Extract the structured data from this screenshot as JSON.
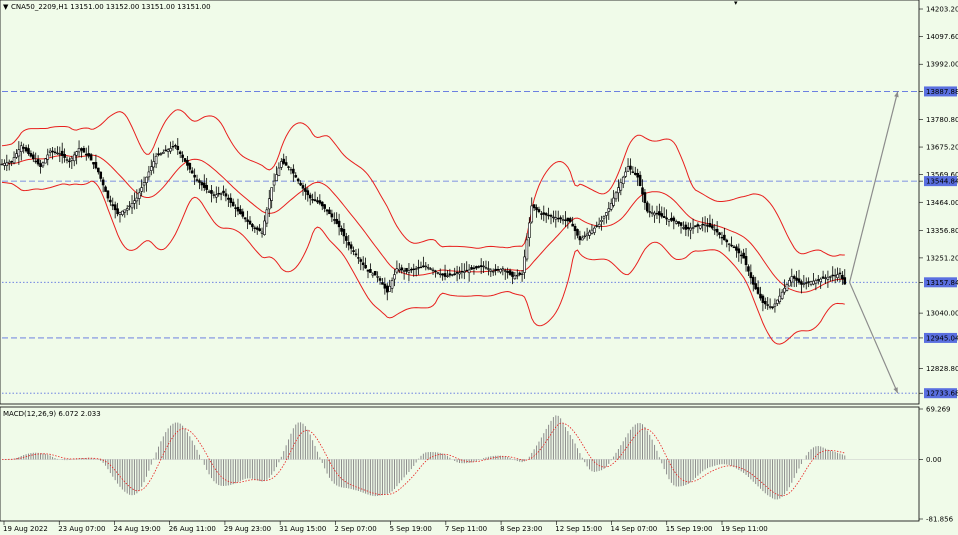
{
  "header": {
    "symbol_line": "CNA50_2209,H1  13151.00 13152.00 13151.00 13151.00"
  },
  "chart_data": {
    "type": "candlestick",
    "symbol": "CNA50_2209",
    "timeframe": "H1",
    "last_ohlc": [
      13151.0,
      13152.0,
      13151.0,
      13151.0
    ],
    "price_ylim": [
      12700,
      14230
    ],
    "price_ticks": [
      "14203.20",
      "14097.60",
      "13992.00",
      "13887.88",
      "13780.80",
      "13675.20",
      "13569.60",
      "13544.84",
      "13464.00",
      "13356.80",
      "13251.20",
      "13157.84",
      "13040.00",
      "12945.04",
      "12828.80",
      "12733.68"
    ],
    "price_tick_values": [
      14203.2,
      14097.6,
      13992.0,
      13887.88,
      13780.8,
      13675.2,
      13569.6,
      13544.84,
      13464.0,
      13356.8,
      13251.2,
      13157.84,
      13040.0,
      12945.04,
      12828.8,
      12733.68
    ],
    "highlighted_levels": [
      {
        "value": 13887.88,
        "label": "13887.88",
        "style": "dashed",
        "color": "#5a6fe0"
      },
      {
        "value": 13544.84,
        "label": "13544.84",
        "style": "dashed",
        "color": "#5a6fe0"
      },
      {
        "value": 13157.84,
        "label": "13157.84",
        "style": "dotted",
        "color": "#5a6fe0"
      },
      {
        "value": 12945.04,
        "label": "12945.04",
        "style": "dashed",
        "color": "#5a6fe0"
      },
      {
        "value": 12733.68,
        "label": "12733.68",
        "style": "dotted",
        "color": "#5a6fe0"
      }
    ],
    "x_labels": [
      "19 Aug 2022",
      "23 Aug 07:00",
      "24 Aug 19:00",
      "26 Aug 11:00",
      "29 Aug 23:00",
      "31 Aug 15:00",
      "2 Sep 07:00",
      "5 Sep 19:00",
      "7 Sep 11:00",
      "8 Sep 23:00",
      "12 Sep 15:00",
      "14 Sep 07:00",
      "15 Sep 19:00",
      "19 Sep 11:00"
    ],
    "close_path": [
      [
        0,
        13610
      ],
      [
        2,
        13620
      ],
      [
        4,
        13680
      ],
      [
        6,
        13640
      ],
      [
        8,
        13600
      ],
      [
        10,
        13660
      ],
      [
        12,
        13650
      ],
      [
        14,
        13620
      ],
      [
        16,
        13670
      ],
      [
        18,
        13640
      ],
      [
        20,
        13580
      ],
      [
        22,
        13480
      ],
      [
        24,
        13420
      ],
      [
        26,
        13440
      ],
      [
        28,
        13480
      ],
      [
        30,
        13560
      ],
      [
        32,
        13640
      ],
      [
        34,
        13660
      ],
      [
        36,
        13680
      ],
      [
        38,
        13620
      ],
      [
        40,
        13560
      ],
      [
        42,
        13520
      ],
      [
        44,
        13490
      ],
      [
        46,
        13500
      ],
      [
        48,
        13450
      ],
      [
        50,
        13410
      ],
      [
        52,
        13370
      ],
      [
        54,
        13350
      ],
      [
        56,
        13520
      ],
      [
        58,
        13620
      ],
      [
        60,
        13590
      ],
      [
        62,
        13530
      ],
      [
        64,
        13480
      ],
      [
        66,
        13460
      ],
      [
        68,
        13420
      ],
      [
        70,
        13370
      ],
      [
        72,
        13300
      ],
      [
        74,
        13250
      ],
      [
        76,
        13200
      ],
      [
        78,
        13180
      ],
      [
        80,
        13120
      ],
      [
        82,
        13210
      ],
      [
        84,
        13200
      ],
      [
        86,
        13210
      ],
      [
        88,
        13220
      ],
      [
        90,
        13200
      ],
      [
        92,
        13180
      ],
      [
        94,
        13190
      ],
      [
        96,
        13200
      ],
      [
        98,
        13210
      ],
      [
        100,
        13220
      ],
      [
        102,
        13200
      ],
      [
        104,
        13210
      ],
      [
        106,
        13180
      ],
      [
        108,
        13190
      ],
      [
        110,
        13450
      ],
      [
        112,
        13420
      ],
      [
        114,
        13410
      ],
      [
        116,
        13400
      ],
      [
        118,
        13390
      ],
      [
        120,
        13320
      ],
      [
        122,
        13350
      ],
      [
        124,
        13380
      ],
      [
        126,
        13440
      ],
      [
        128,
        13520
      ],
      [
        130,
        13600
      ],
      [
        132,
        13560
      ],
      [
        134,
        13430
      ],
      [
        136,
        13420
      ],
      [
        138,
        13400
      ],
      [
        140,
        13390
      ],
      [
        142,
        13360
      ],
      [
        144,
        13370
      ],
      [
        146,
        13380
      ],
      [
        148,
        13360
      ],
      [
        150,
        13320
      ],
      [
        152,
        13290
      ],
      [
        154,
        13250
      ],
      [
        156,
        13150
      ],
      [
        158,
        13080
      ],
      [
        160,
        13060
      ],
      [
        162,
        13120
      ],
      [
        164,
        13180
      ],
      [
        166,
        13150
      ],
      [
        168,
        13160
      ],
      [
        170,
        13170
      ],
      [
        172,
        13180
      ],
      [
        174,
        13190
      ],
      [
        175,
        13151
      ]
    ],
    "price_annotation_lines": [
      {
        "from": [
          176,
          13157.84
        ],
        "to": [
          186,
          13887.88
        ],
        "color": "#8c8c8c"
      },
      {
        "from": [
          176,
          13157.84
        ],
        "to": [
          186,
          12733.68
        ],
        "color": "#8c8c8c"
      }
    ],
    "macd": {
      "label": "MACD(12,26,9) 6.072 2.033",
      "ylim": [
        -81.856,
        69.269
      ],
      "ticks": [
        "69.269",
        "0.00",
        "-81.856"
      ],
      "tick_values": [
        69.269,
        0.0,
        -81.856
      ],
      "last_value": 6.072,
      "signal_value": 2.033
    }
  }
}
